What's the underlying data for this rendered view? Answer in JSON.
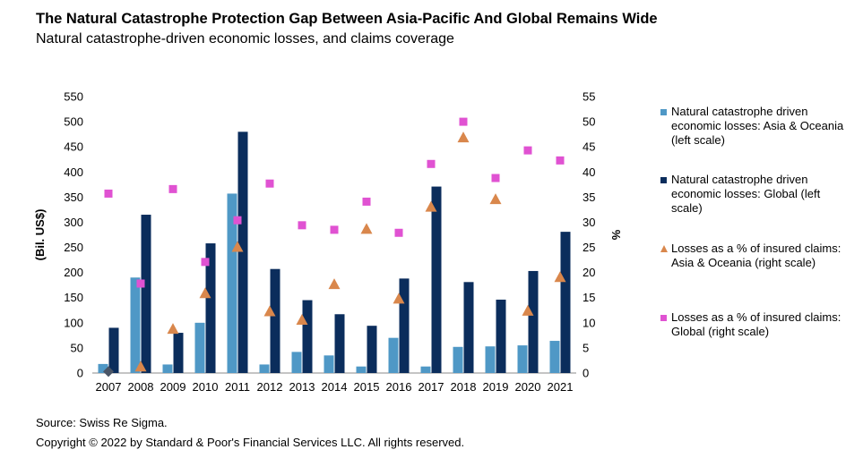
{
  "title": "The Natural Catastrophe Protection Gap Between Asia-Pacific And Global Remains Wide",
  "subtitle": "Natural catastrophe-driven economic losses, and claims coverage",
  "source": "Source: Swiss Re Sigma.",
  "copyright": "Copyright © 2022 by Standard & Poor's Financial Services LLC. All rights reserved.",
  "colors": {
    "asia_bar": "#4f98c6",
    "global_bar": "#0b2d5c",
    "asia_pct": "#d9874c",
    "global_pct": "#e052d2"
  },
  "legend": [
    {
      "label": "Natural catastrophe driven economic losses: Asia & Oceania (left scale)",
      "marker": "square",
      "color": "#4f98c6"
    },
    {
      "label": "Natural catastrophe driven economic losses: Global (left scale)",
      "marker": "square",
      "color": "#0b2d5c"
    },
    {
      "label": "Losses as a % of insured claims: Asia & Oceania (right scale)",
      "marker": "triangle",
      "color": "#d9874c"
    },
    {
      "label": "Losses as a % of insured claims: Global (right scale)",
      "marker": "square",
      "color": "#e052d2"
    }
  ],
  "chart_data": {
    "type": "bar",
    "ylabel": "(Bil. US$)",
    "y2label": "%",
    "ylim": [
      0,
      550
    ],
    "y2lim": [
      0,
      55
    ],
    "yticks": [
      0,
      50,
      100,
      150,
      200,
      250,
      300,
      350,
      400,
      450,
      500,
      550
    ],
    "y2ticks": [
      0,
      5,
      10,
      15,
      20,
      25,
      30,
      35,
      40,
      45,
      50,
      55
    ],
    "categories": [
      "2007",
      "2008",
      "2009",
      "2010",
      "2011",
      "2012",
      "2013",
      "2014",
      "2015",
      "2016",
      "2017",
      "2018",
      "2019",
      "2020",
      "2021"
    ],
    "grid": false,
    "legend_position": "right",
    "series": [
      {
        "name": "Natural catastrophe driven economic losses: Asia & Oceania (left scale)",
        "kind": "bar",
        "axis": "left",
        "values": [
          18,
          190,
          17,
          100,
          357,
          17,
          42,
          35,
          13,
          70,
          13,
          52,
          53,
          55,
          64
        ]
      },
      {
        "name": "Natural catastrophe driven economic losses: Global (left scale)",
        "kind": "bar",
        "axis": "left",
        "values": [
          90,
          315,
          80,
          258,
          480,
          207,
          145,
          117,
          94,
          188,
          371,
          181,
          146,
          203,
          281
        ]
      },
      {
        "name": "Losses as a % of insured claims: Asia & Oceania (right scale)",
        "kind": "scatter",
        "marker": "triangle",
        "axis": "right",
        "values": [
          0.3,
          1.2,
          8.7,
          15.8,
          25.0,
          12.2,
          10.5,
          17.6,
          28.6,
          14.7,
          33.0,
          46.8,
          34.5,
          12.3,
          19.0
        ]
      },
      {
        "name": "Losses as a % of insured claims: Global (right scale)",
        "kind": "scatter",
        "marker": "square",
        "axis": "right",
        "values": [
          35.7,
          17.8,
          36.6,
          22.1,
          30.4,
          37.7,
          29.4,
          28.5,
          34.1,
          27.9,
          41.6,
          50.0,
          38.8,
          44.3,
          42.3
        ]
      }
    ]
  }
}
